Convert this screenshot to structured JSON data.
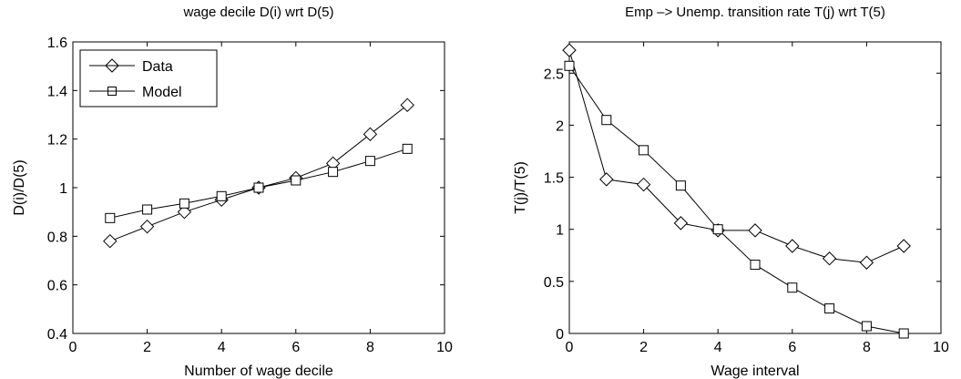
{
  "chart_data": [
    {
      "type": "line",
      "title": "wage decile D(i) wrt D(5)",
      "xlabel": "Number of wage decile",
      "ylabel": "D(i)/D(5)",
      "xlim": [
        0,
        10
      ],
      "ylim": [
        0.4,
        1.6
      ],
      "xticks": [
        "0",
        "2",
        "4",
        "6",
        "8",
        "10"
      ],
      "yticks": [
        "0.4",
        "0.6",
        "0.8",
        "1",
        "1.2",
        "1.4",
        "1.6"
      ],
      "grid": false,
      "legend_position": "top-left",
      "series": [
        {
          "name": "Data",
          "marker": "diamond",
          "x": [
            1,
            2,
            3,
            4,
            5,
            6,
            7,
            8,
            9
          ],
          "values": [
            0.78,
            0.84,
            0.9,
            0.95,
            1.0,
            1.04,
            1.1,
            1.22,
            1.34
          ]
        },
        {
          "name": "Model",
          "marker": "square",
          "x": [
            1,
            2,
            3,
            4,
            5,
            6,
            7,
            8,
            9
          ],
          "values": [
            0.875,
            0.91,
            0.935,
            0.965,
            1.0,
            1.03,
            1.065,
            1.11,
            1.16
          ]
        }
      ]
    },
    {
      "type": "line",
      "title": "Emp –> Unemp. transition rate  T(j) wrt T(5)",
      "xlabel": "Wage interval",
      "ylabel": "T(j)/T(5)",
      "xlim": [
        0,
        10
      ],
      "ylim": [
        0,
        2.8
      ],
      "xticks": [
        "0",
        "2",
        "4",
        "6",
        "8",
        "10"
      ],
      "yticks": [
        "0",
        "0.5",
        "1",
        "1.5",
        "2",
        "2.5"
      ],
      "grid": false,
      "series": [
        {
          "marker": "diamond",
          "x": [
            0,
            1,
            2,
            3,
            4,
            5,
            6,
            7,
            8,
            9
          ],
          "values": [
            2.72,
            1.48,
            1.43,
            1.06,
            0.99,
            0.99,
            0.84,
            0.72,
            0.68,
            0.84
          ]
        },
        {
          "marker": "square",
          "x": [
            0,
            1,
            2,
            3,
            4,
            5,
            6,
            7,
            8,
            9
          ],
          "values": [
            2.57,
            2.05,
            1.76,
            1.42,
            1.0,
            0.66,
            0.44,
            0.24,
            0.07,
            0.0
          ]
        }
      ]
    }
  ]
}
